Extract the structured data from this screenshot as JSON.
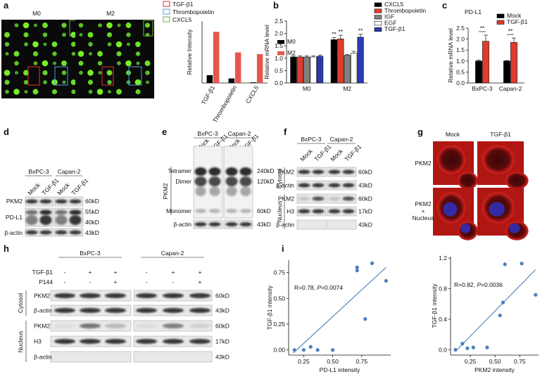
{
  "panel_labels": [
    "a",
    "b",
    "c",
    "d",
    "e",
    "f",
    "g",
    "h",
    "i"
  ],
  "chart_data": [
    {
      "type": "bar",
      "ylabel": "Relative Intensity",
      "categories": [
        "TGF-β1",
        "Thrombopoietin",
        "CXCL5"
      ],
      "series": [
        {
          "name": "M0",
          "color": "#000000",
          "values": [
            380,
            220,
            30
          ]
        },
        {
          "name": "M2",
          "color": "#e8554e",
          "values": [
            2480,
            1480,
            1400
          ]
        }
      ],
      "ylim": [
        0,
        3000
      ]
    },
    {
      "type": "bar",
      "ylabel": "Relative mRNA level",
      "categories": [
        "M0",
        "M2"
      ],
      "series": [
        {
          "name": "CXCL5",
          "color": "#000000",
          "values": [
            1.05,
            1.75
          ],
          "errors": [
            0.05,
            0.08
          ],
          "significance": [
            null,
            "**"
          ]
        },
        {
          "name": "Thrombopoietin",
          "color": "#e03b2e",
          "values": [
            1.05,
            1.78
          ],
          "errors": [
            0.05,
            0.15
          ],
          "significance": [
            null,
            "**"
          ]
        },
        {
          "name": "IGF",
          "color": "#808080",
          "values": [
            1.05,
            1.12
          ],
          "errors": [
            0.04,
            0.03
          ]
        },
        {
          "name": "EGF",
          "color": "#ffffff",
          "values": [
            1.05,
            1.2
          ],
          "errors": [
            0.04,
            0.08
          ]
        },
        {
          "name": "TGF-β1",
          "color": "#2a3cb0",
          "values": [
            1.08,
            1.85
          ],
          "errors": [
            0.05,
            0.12
          ],
          "significance": [
            null,
            "**"
          ]
        }
      ],
      "ylim": [
        0,
        2.5
      ],
      "yticks": [
        {
          "value": 0,
          "label": "0.0"
        },
        0.5,
        {
          "value": 1,
          "label": "1.0"
        },
        1.5,
        {
          "value": 2,
          "label": "2.0"
        },
        2.5
      ]
    },
    {
      "type": "bar",
      "title": "PD-L1",
      "ylabel": "Relative mRNA level",
      "categories": [
        "BxPC-3",
        "Capan-2"
      ],
      "series": [
        {
          "name": "Mock",
          "color": "#000000",
          "values": [
            1.0,
            1.0
          ],
          "errors": [
            0.04,
            0.02
          ]
        },
        {
          "name": "TGF-β1",
          "color": "#e03b2e",
          "values": [
            1.9,
            1.85
          ],
          "errors": [
            0.28,
            0.2
          ]
        }
      ],
      "significance": [
        "**",
        "**"
      ],
      "ylim": [
        0,
        2.5
      ],
      "yticks": [
        {
          "value": 0,
          "label": "0.0"
        },
        0.5,
        {
          "value": 1,
          "label": "1.0"
        },
        1.5,
        {
          "value": 2,
          "label": "2.0"
        },
        2.5
      ]
    },
    {
      "type": "scatter",
      "xlabel": "PD-L1 intensity",
      "ylabel": "TGF-β1 intensity",
      "color": "#4a7fc0",
      "annotation": {
        "r": "R=0.78, ",
        "p": "P",
        "value": "=0.0074"
      },
      "x": [
        0.17,
        0.25,
        0.31,
        0.37,
        0.5,
        0.71,
        0.71,
        0.84,
        0.78,
        0.96
      ],
      "y": [
        0.0,
        0.0,
        0.03,
        0.0,
        0.0,
        0.8,
        0.77,
        0.84,
        0.3,
        0.67
      ],
      "fit": {
        "x": [
          0.16,
          0.96
        ],
        "y": [
          -0.03,
          0.8
        ]
      },
      "xlim": [
        0.12,
        1.0
      ],
      "ylim": [
        -0.05,
        0.87
      ],
      "xticks": [
        0.25,
        {
          "value": 0.5,
          "label": "0.50"
        },
        0.75
      ],
      "yticks": [
        {
          "value": 0,
          "label": "0.00"
        },
        0.25,
        {
          "value": 0.5,
          "label": "0.50"
        },
        0.75
      ]
    },
    {
      "type": "scatter",
      "xlabel": "PKM2 intensity",
      "ylabel": "TGF-β1 intensity",
      "color": "#4a7fc0",
      "annotation": {
        "r": "R=0.82, ",
        "p": "P",
        "value": "=0.0036"
      },
      "x": [
        0.1,
        0.17,
        0.22,
        0.28,
        0.42,
        0.55,
        0.58,
        0.6,
        0.77,
        0.91
      ],
      "y": [
        0.0,
        0.08,
        0.02,
        0.03,
        0.03,
        0.45,
        0.62,
        1.12,
        1.13,
        0.72
      ],
      "fit": {
        "x": [
          0.1,
          0.91
        ],
        "y": [
          -0.02,
          1.05
        ]
      },
      "xlim": [
        0.05,
        0.94
      ],
      "ylim": [
        -0.07,
        1.22
      ],
      "xticks": [
        0.25,
        {
          "value": 0.5,
          "label": "0.50"
        },
        0.75
      ],
      "yticks": [
        {
          "value": 0,
          "label": "0.0"
        },
        0.4,
        0.8,
        1.2
      ]
    }
  ],
  "array": {
    "legend": [
      "TGF-β1",
      "Thrombopoietin",
      "CXCL5"
    ],
    "labels": [
      "M0",
      "M2"
    ]
  },
  "d": {
    "cells": [
      "BxPC-3",
      "Capan-2"
    ],
    "lanes": [
      "Mock",
      "TGF-β1",
      "Mock",
      "TGF-β1"
    ],
    "rows": [
      "PKM2",
      "PD-L1",
      "β-actin"
    ],
    "sizes": [
      "60kD",
      "55kD",
      "40kD",
      "43kD"
    ]
  },
  "e": {
    "cells": [
      "BxPC-3",
      "Capan-2"
    ],
    "lanes": [
      "Mock",
      "TGF-β1",
      "Mock",
      "TGF-β1"
    ],
    "protein": "PKM2",
    "forms": [
      "Tetramer",
      "Dimer",
      "Monomer"
    ],
    "loading": "β-actin",
    "sizes": [
      "240kD",
      "120kD",
      "60kD",
      "43kD"
    ]
  },
  "f": {
    "cells": [
      "BxPC-3",
      "Capan-2"
    ],
    "lanes": [
      "Mock",
      "TGF-β1",
      "Mock",
      "TGF-β1"
    ],
    "fractions": [
      "Cytosol",
      "Nucleus"
    ],
    "rows": [
      "PKM2",
      "β-actin",
      "PKM2",
      "H3",
      "β-actin"
    ],
    "sizes": [
      "60kD",
      "43kD",
      "60kD",
      "17kD",
      "43kD"
    ]
  },
  "g": {
    "columns": [
      "Mock",
      "TGF-β1"
    ],
    "rows": [
      [
        "PKM2"
      ],
      [
        "PKM2",
        "+",
        "Nucleus"
      ]
    ]
  },
  "h": {
    "cells": [
      "BxPC-3",
      "Capan-2"
    ],
    "treatments": [
      {
        "name": "TGF-β1",
        "signs": [
          "-",
          "+",
          "+",
          "-",
          "+",
          "+"
        ]
      },
      {
        "name": "P144",
        "signs": [
          "-",
          "-",
          "+",
          "-",
          "-",
          "+"
        ]
      }
    ],
    "fractions": [
      "Cytosol",
      "Nucleus"
    ],
    "rows": [
      "PKM2",
      "β-actin",
      "PKM2",
      "H3",
      "β-actin"
    ],
    "sizes": [
      "60kD",
      "43kD",
      "60kD",
      "17kD",
      "43kD"
    ]
  }
}
